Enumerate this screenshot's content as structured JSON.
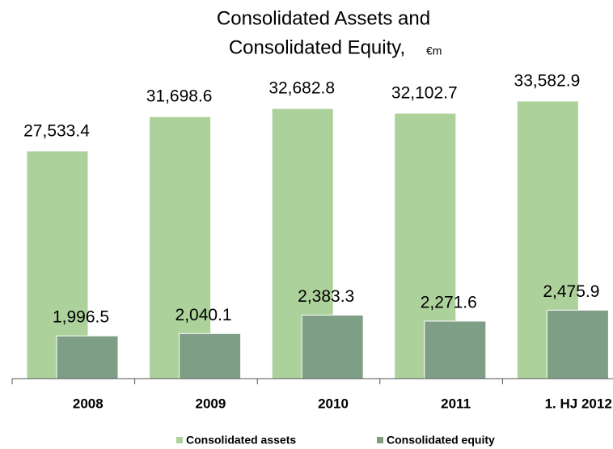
{
  "chart_data": {
    "type": "bar",
    "title": [
      "Consolidated Assets and",
      "Consolidated Equity,"
    ],
    "unit": "€m",
    "categories": [
      "2008",
      "2009",
      "2010",
      "2011",
      "1. HJ 2012"
    ],
    "series": [
      {
        "name": "Consolidated assets",
        "color": "#acd19a",
        "values": [
          27533.4,
          31698.6,
          32682.8,
          32102.7,
          33582.9
        ],
        "value_labels": [
          "27,533.4",
          "31,698.6",
          "32,682.8",
          "32,102.7",
          "33,582.9"
        ]
      },
      {
        "name": "Consolidated equity",
        "color": "#7f9e86",
        "axis": "y2",
        "values": [
          1996.5,
          2040.1,
          2383.3,
          2271.6,
          2475.9
        ],
        "value_labels": [
          "1,996.5",
          "2,040.1",
          "2,383.3",
          "2,271.6",
          "2,475.9"
        ]
      }
    ],
    "ylim": [
      0,
      37000
    ],
    "y2lim": [
      1200,
      6900
    ],
    "legend": "bottom"
  }
}
